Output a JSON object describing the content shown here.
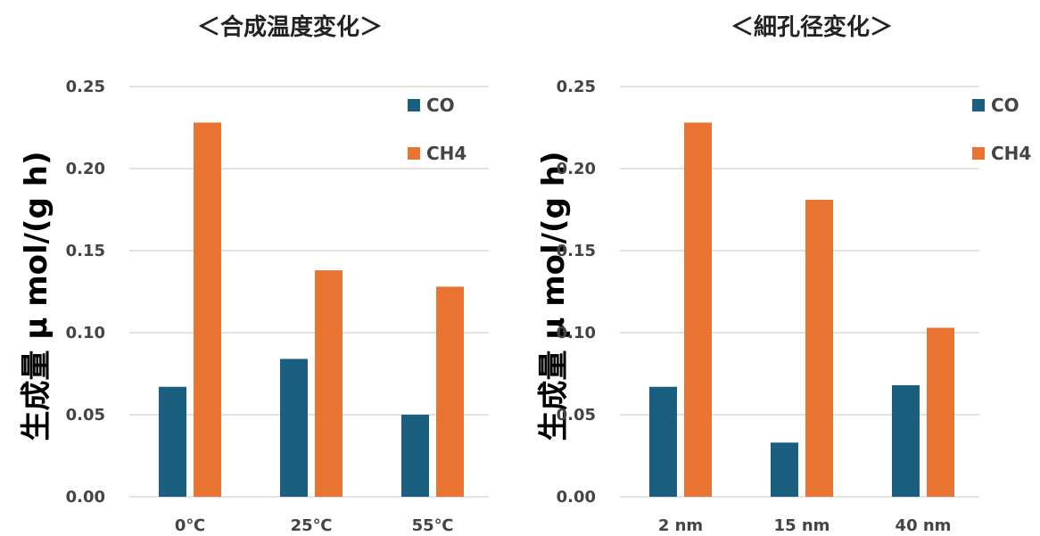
{
  "colors": {
    "CO": "#1a5f80",
    "CH4": "#e97432",
    "grid": "#d0d0d0"
  },
  "chart_data": [
    {
      "type": "bar",
      "title": "＜合成温度変化＞",
      "ylabel": "生成量  μ mol/(g h)",
      "xlabel": "",
      "categories": [
        "0℃",
        "25℃",
        "55℃"
      ],
      "series": [
        {
          "name": "CO",
          "values": [
            0.067,
            0.084,
            0.05
          ]
        },
        {
          "name": "CH4",
          "values": [
            0.228,
            0.138,
            0.128
          ]
        }
      ],
      "ylim": [
        0,
        0.25
      ],
      "yticks": [
        "0.00",
        "0.05",
        "0.10",
        "0.15",
        "0.20",
        "0.25"
      ],
      "grid": true,
      "legend": "top-right"
    },
    {
      "type": "bar",
      "title": "＜細孔径変化＞",
      "ylabel": "生成量  μ mol/(g h)",
      "xlabel": "",
      "categories": [
        "2 nm",
        "15 nm",
        "40 nm"
      ],
      "series": [
        {
          "name": "CO",
          "values": [
            0.067,
            0.033,
            0.068
          ]
        },
        {
          "name": "CH4",
          "values": [
            0.228,
            0.181,
            0.103
          ]
        }
      ],
      "ylim": [
        0,
        0.25
      ],
      "yticks": [
        "0.00",
        "0.05",
        "0.10",
        "0.15",
        "0.20",
        "0.25"
      ],
      "grid": true,
      "legend": "top-right"
    }
  ]
}
